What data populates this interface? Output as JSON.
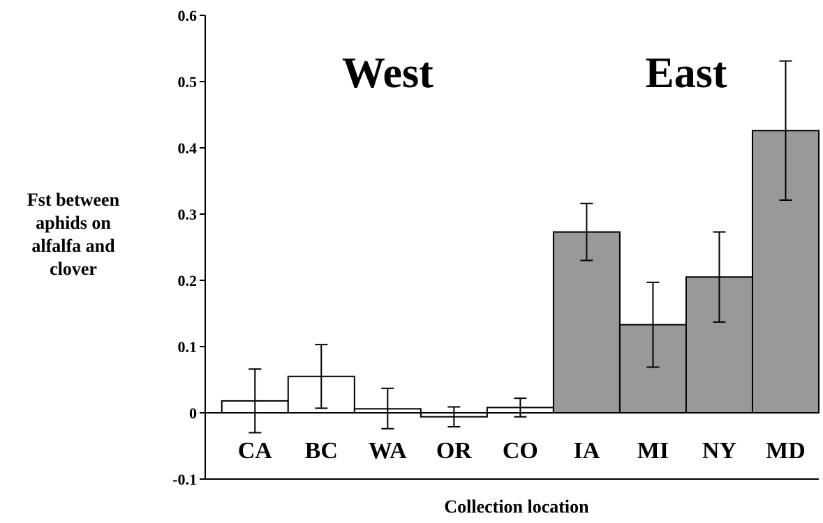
{
  "chart_data": {
    "type": "bar",
    "categories": [
      "CA",
      "BC",
      "WA",
      "OR",
      "CO",
      "IA",
      "MI",
      "NY",
      "MD"
    ],
    "values": [
      0.018,
      0.055,
      0.006,
      -0.006,
      0.008,
      0.273,
      0.133,
      0.205,
      0.426
    ],
    "error_low": [
      -0.03,
      0.007,
      -0.024,
      -0.021,
      -0.006,
      0.23,
      0.069,
      0.137,
      0.321
    ],
    "error_high": [
      0.066,
      0.103,
      0.037,
      0.009,
      0.022,
      0.316,
      0.197,
      0.273,
      0.531
    ],
    "groups": [
      "West",
      "West",
      "West",
      "West",
      "West",
      "East",
      "East",
      "East",
      "East"
    ],
    "group_labels": [
      "West",
      "East"
    ],
    "colors": {
      "West": "#ffffff",
      "East": "#999999",
      "outline": "#000000"
    },
    "ylabel_lines": [
      "Fst between",
      "aphids on",
      "alfalfa and",
      "clover"
    ],
    "xlabel": "Collection location",
    "ylim": [
      -0.1,
      0.6
    ],
    "yticks": [
      "-0.1",
      "0",
      "0.1",
      "0.2",
      "0.3",
      "0.4",
      "0.5",
      "0.6"
    ],
    "grid": false
  }
}
